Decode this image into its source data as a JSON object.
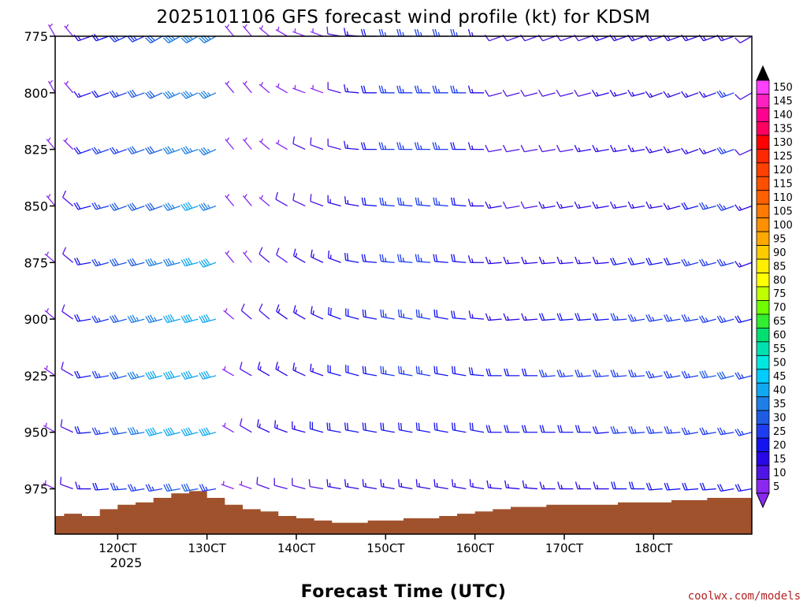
{
  "chart_data": {
    "type": "wind_barb_time_height",
    "title": "2025101106 GFS forecast wind profile (kt) for KDSM",
    "xlabel": "Forecast Time (UTC)",
    "credit": "coolwx.com/models",
    "y_axis": {
      "quantity": "pressure (hPa)",
      "ticks": [
        "775",
        "800",
        "825",
        "850",
        "875",
        "900",
        "925",
        "950",
        "975"
      ],
      "tick_values": [
        775,
        800,
        825,
        850,
        875,
        900,
        925,
        950,
        975
      ],
      "range": [
        775,
        995
      ],
      "inverted": true
    },
    "x_axis": {
      "quantity": "forecast hour",
      "range": [
        -7,
        71
      ],
      "tick_labels": [
        "120CT",
        "130CT",
        "140CT",
        "150CT",
        "160CT",
        "170CT",
        "180CT"
      ],
      "tick_hours": [
        0,
        10,
        20,
        30,
        40,
        50,
        60
      ],
      "year_label": "2025"
    },
    "terrain": {
      "color": "#a0522d",
      "hours": [
        -7,
        -5,
        -3,
        -1,
        1,
        3,
        5,
        7,
        9,
        11,
        13,
        15,
        17,
        19,
        21,
        23,
        25,
        27,
        29,
        31,
        33,
        35,
        37,
        39,
        41,
        43,
        45,
        47,
        49,
        51,
        53,
        55,
        57,
        59,
        61,
        63,
        65,
        67,
        69,
        71
      ],
      "surface_pressure": [
        987,
        986,
        987,
        984,
        982,
        981,
        979,
        977,
        976,
        979,
        982,
        984,
        985,
        987,
        988,
        989,
        990,
        990,
        989,
        989,
        988,
        988,
        987,
        986,
        985,
        984,
        983,
        983,
        982,
        982,
        982,
        982,
        981,
        981,
        981,
        980,
        980,
        979,
        979,
        979
      ]
    },
    "barb_hours": [
      -7,
      -5,
      -3,
      -1,
      1,
      3,
      5,
      7,
      9,
      11,
      13,
      15,
      17,
      19,
      21,
      23,
      25,
      27,
      29,
      31,
      33,
      35,
      37,
      39,
      41,
      43,
      45,
      47,
      49,
      51,
      53,
      55,
      57,
      59,
      61,
      63,
      65,
      67,
      69,
      71
    ],
    "levels": [
      775,
      800,
      825,
      850,
      875,
      900,
      925,
      950,
      975
    ],
    "wind_dir_deg": [
      [
        330,
        320,
        250,
        250,
        245,
        245,
        240,
        240,
        240,
        240,
        320,
        320,
        310,
        300,
        290,
        290,
        280,
        275,
        270,
        270,
        270,
        270,
        270,
        270,
        270,
        250,
        250,
        250,
        250,
        250,
        250,
        250,
        250,
        250,
        250,
        250,
        250,
        250,
        250,
        240
      ],
      [
        330,
        320,
        250,
        250,
        250,
        250,
        245,
        245,
        245,
        245,
        320,
        320,
        310,
        300,
        290,
        290,
        285,
        275,
        270,
        270,
        270,
        270,
        270,
        270,
        270,
        255,
        255,
        255,
        255,
        255,
        255,
        255,
        255,
        255,
        250,
        250,
        250,
        250,
        250,
        240
      ],
      [
        320,
        315,
        250,
        250,
        250,
        250,
        250,
        250,
        250,
        245,
        320,
        320,
        310,
        300,
        295,
        290,
        285,
        275,
        270,
        270,
        270,
        270,
        270,
        270,
        270,
        260,
        260,
        260,
        260,
        260,
        260,
        260,
        260,
        260,
        255,
        255,
        250,
        250,
        250,
        245
      ],
      [
        320,
        310,
        255,
        255,
        250,
        250,
        250,
        250,
        250,
        250,
        320,
        320,
        310,
        300,
        295,
        290,
        285,
        280,
        275,
        275,
        275,
        275,
        275,
        275,
        270,
        260,
        260,
        260,
        260,
        260,
        260,
        260,
        260,
        260,
        260,
        255,
        255,
        255,
        250,
        250
      ],
      [
        310,
        310,
        260,
        255,
        255,
        255,
        255,
        255,
        255,
        250,
        320,
        320,
        310,
        305,
        300,
        295,
        290,
        280,
        275,
        275,
        275,
        275,
        275,
        275,
        270,
        265,
        265,
        265,
        265,
        265,
        265,
        265,
        260,
        260,
        260,
        260,
        255,
        255,
        255,
        250
      ],
      [
        310,
        305,
        260,
        255,
        255,
        255,
        255,
        255,
        255,
        255,
        310,
        310,
        310,
        305,
        300,
        295,
        290,
        285,
        280,
        280,
        280,
        280,
        280,
        275,
        275,
        265,
        265,
        265,
        265,
        265,
        265,
        265,
        265,
        260,
        260,
        260,
        260,
        255,
        255,
        255
      ],
      [
        305,
        300,
        260,
        260,
        255,
        255,
        255,
        255,
        255,
        255,
        300,
        300,
        300,
        300,
        295,
        290,
        285,
        285,
        280,
        280,
        280,
        280,
        280,
        280,
        275,
        270,
        270,
        270,
        265,
        265,
        265,
        265,
        265,
        265,
        260,
        260,
        260,
        260,
        255,
        255
      ],
      [
        300,
        295,
        265,
        260,
        260,
        260,
        255,
        255,
        255,
        255,
        300,
        300,
        295,
        290,
        285,
        285,
        280,
        280,
        280,
        280,
        280,
        280,
        280,
        280,
        280,
        270,
        270,
        270,
        270,
        270,
        270,
        265,
        265,
        265,
        265,
        265,
        260,
        260,
        260,
        255
      ],
      [
        295,
        290,
        270,
        265,
        265,
        260,
        260,
        260,
        260,
        260,
        290,
        290,
        290,
        285,
        285,
        280,
        280,
        280,
        280,
        280,
        280,
        280,
        280,
        280,
        280,
        275,
        275,
        275,
        270,
        270,
        270,
        270,
        270,
        270,
        265,
        265,
        265,
        265,
        260,
        260
      ]
    ],
    "wind_speed_kt": [
      [
        5,
        5,
        15,
        20,
        25,
        25,
        30,
        35,
        35,
        35,
        5,
        5,
        5,
        5,
        5,
        5,
        10,
        15,
        20,
        25,
        25,
        25,
        25,
        25,
        15,
        10,
        10,
        10,
        10,
        10,
        10,
        15,
        15,
        15,
        15,
        15,
        15,
        15,
        15,
        10
      ],
      [
        5,
        5,
        15,
        20,
        25,
        30,
        30,
        35,
        35,
        35,
        5,
        5,
        5,
        5,
        5,
        5,
        10,
        15,
        20,
        25,
        25,
        25,
        25,
        25,
        15,
        10,
        10,
        10,
        10,
        10,
        10,
        15,
        15,
        15,
        15,
        15,
        15,
        15,
        25,
        10
      ],
      [
        5,
        5,
        20,
        25,
        25,
        30,
        30,
        35,
        35,
        35,
        5,
        5,
        5,
        5,
        10,
        10,
        10,
        15,
        20,
        25,
        25,
        25,
        25,
        20,
        15,
        10,
        10,
        10,
        10,
        10,
        15,
        15,
        15,
        15,
        15,
        15,
        15,
        15,
        25,
        10
      ],
      [
        5,
        10,
        20,
        25,
        30,
        30,
        30,
        35,
        40,
        35,
        5,
        5,
        5,
        10,
        10,
        10,
        15,
        15,
        20,
        25,
        25,
        25,
        25,
        20,
        15,
        15,
        10,
        10,
        15,
        15,
        15,
        15,
        15,
        15,
        15,
        15,
        20,
        25,
        25,
        15
      ],
      [
        5,
        10,
        20,
        25,
        30,
        30,
        35,
        35,
        40,
        40,
        5,
        5,
        10,
        10,
        15,
        15,
        15,
        20,
        20,
        25,
        25,
        25,
        20,
        20,
        15,
        15,
        15,
        15,
        15,
        15,
        15,
        15,
        20,
        20,
        20,
        20,
        25,
        25,
        25,
        15
      ],
      [
        5,
        10,
        20,
        25,
        30,
        35,
        35,
        40,
        40,
        40,
        5,
        10,
        10,
        15,
        15,
        15,
        20,
        20,
        20,
        25,
        25,
        25,
        20,
        20,
        15,
        15,
        15,
        15,
        20,
        20,
        20,
        20,
        25,
        25,
        25,
        25,
        25,
        25,
        25,
        20
      ],
      [
        5,
        10,
        20,
        25,
        30,
        35,
        40,
        40,
        40,
        40,
        5,
        10,
        15,
        15,
        15,
        15,
        20,
        20,
        20,
        25,
        25,
        25,
        20,
        20,
        20,
        20,
        20,
        20,
        25,
        25,
        25,
        25,
        25,
        25,
        25,
        25,
        25,
        30,
        30,
        25
      ],
      [
        5,
        10,
        20,
        25,
        30,
        35,
        40,
        40,
        40,
        40,
        5,
        10,
        15,
        15,
        15,
        20,
        20,
        20,
        20,
        20,
        20,
        20,
        20,
        20,
        20,
        20,
        20,
        20,
        20,
        20,
        20,
        20,
        25,
        25,
        25,
        25,
        25,
        25,
        25,
        25
      ],
      [
        5,
        10,
        15,
        20,
        25,
        25,
        25,
        30,
        30,
        25,
        5,
        5,
        10,
        10,
        10,
        10,
        15,
        15,
        15,
        15,
        15,
        15,
        15,
        15,
        15,
        15,
        15,
        15,
        15,
        15,
        15,
        15,
        20,
        20,
        20,
        20,
        20,
        20,
        20,
        20
      ]
    ],
    "colorbar": {
      "labels": [
        "150",
        "145",
        "140",
        "135",
        "130",
        "125",
        "120",
        "115",
        "110",
        "105",
        "100",
        "95",
        "90",
        "85",
        "80",
        "75",
        "70",
        "65",
        "60",
        "55",
        "50",
        "45",
        "40",
        "35",
        "30",
        "25",
        "20",
        "15",
        "10",
        "5"
      ],
      "colors": [
        "#ff40ff",
        "#ff20c0",
        "#ff0090",
        "#ff0060",
        "#ff0000",
        "#ff2800",
        "#ff4000",
        "#ff5000",
        "#ff6000",
        "#ff7a00",
        "#ff9000",
        "#ffa800",
        "#ffcc00",
        "#ffee00",
        "#ffff00",
        "#c0ff00",
        "#70ff00",
        "#30ee30",
        "#00e070",
        "#00e0b0",
        "#00e8e0",
        "#00ccff",
        "#10a8f0",
        "#1e7fe6",
        "#1e5ce6",
        "#1e3cf0",
        "#1414f0",
        "#2808e6",
        "#5014e6",
        "#8a28f0"
      ]
    }
  }
}
